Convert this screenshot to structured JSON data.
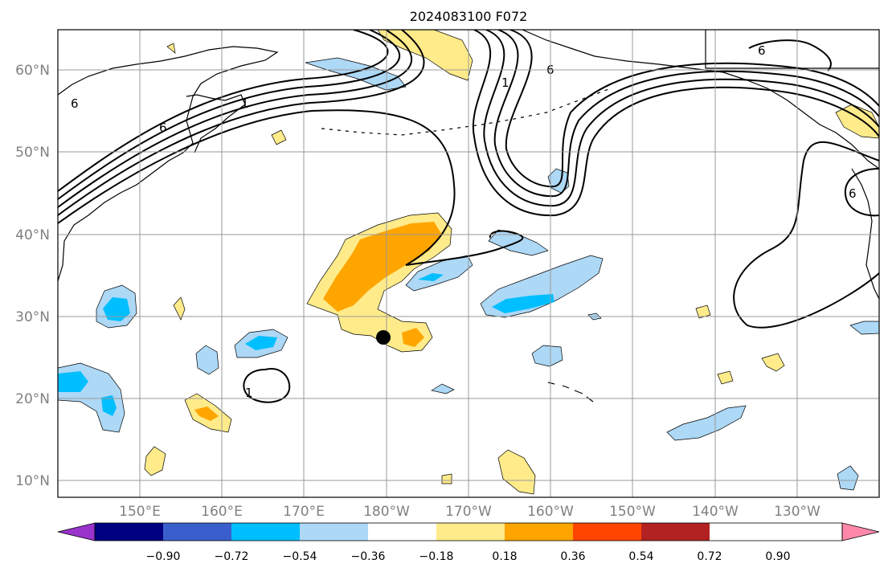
{
  "title": "2024083100 F072",
  "lat_labels": [
    "60°N",
    "50°N",
    "40°N",
    "30°N",
    "20°N",
    "10°N"
  ],
  "lon_labels": [
    "150°E",
    "160°E",
    "170°E",
    "180°W",
    "170°W",
    "160°W",
    "150°W",
    "140°W",
    "130°W"
  ],
  "colorbar": {
    "colors": [
      "#9933cc",
      "#000080",
      "#3a5fcd",
      "#00bfff",
      "#add8f6",
      "#ffffff",
      "#ffeb8a",
      "#ffa500",
      "#ff4500",
      "#b22222",
      "#ff88aa"
    ],
    "tick_labels": [
      "−0.90",
      "−0.72",
      "−0.54",
      "−0.36",
      "−0.18",
      "0.18",
      "0.36",
      "0.54",
      "0.72",
      "0.90"
    ]
  },
  "contour_labels": [
    "6",
    "6",
    "6",
    "6",
    "6",
    "1",
    "1",
    "1"
  ]
}
